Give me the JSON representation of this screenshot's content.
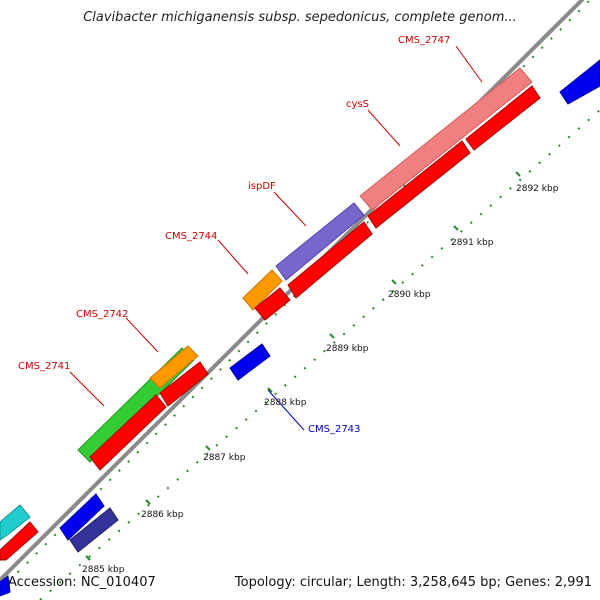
{
  "title": "Clavibacter michiganensis subsp. sepedonicus, complete genom...",
  "footer": {
    "accession": "Accession: NC_010407",
    "topology": "Topology: circular; Length: 3,258,645 bp; Genes: 2,991"
  },
  "colors": {
    "backbone": "#8a8a8a",
    "tick": "#2a8a2a",
    "label_forward": "#cc0000",
    "label_reverse": "#0000cc",
    "green": "#33cc33",
    "orange": "#ff9900",
    "pink": "#f08080",
    "purple": "#7766cc",
    "red": "#ff0000",
    "blue": "#0000ee",
    "navy": "#333399",
    "cyan": "#22cccc"
  },
  "ticks": [
    {
      "label": "2885 kbp"
    },
    {
      "label": "2886 kbp"
    },
    {
      "label": "2887 kbp"
    },
    {
      "label": "2888 kbp"
    },
    {
      "label": "2889 kbp"
    },
    {
      "label": "2890 kbp"
    },
    {
      "label": "2891 kbp"
    },
    {
      "label": "2892 kbp"
    }
  ],
  "gene_labels": [
    {
      "name": "CMS_2741",
      "strand": "forward"
    },
    {
      "name": "CMS_2742",
      "strand": "forward"
    },
    {
      "name": "CMS_2744",
      "strand": "forward"
    },
    {
      "name": "ispDF",
      "strand": "forward"
    },
    {
      "name": "cysS",
      "strand": "forward"
    },
    {
      "name": "CMS_2747",
      "strand": "forward"
    },
    {
      "name": "CMS_2743",
      "strand": "reverse"
    }
  ]
}
